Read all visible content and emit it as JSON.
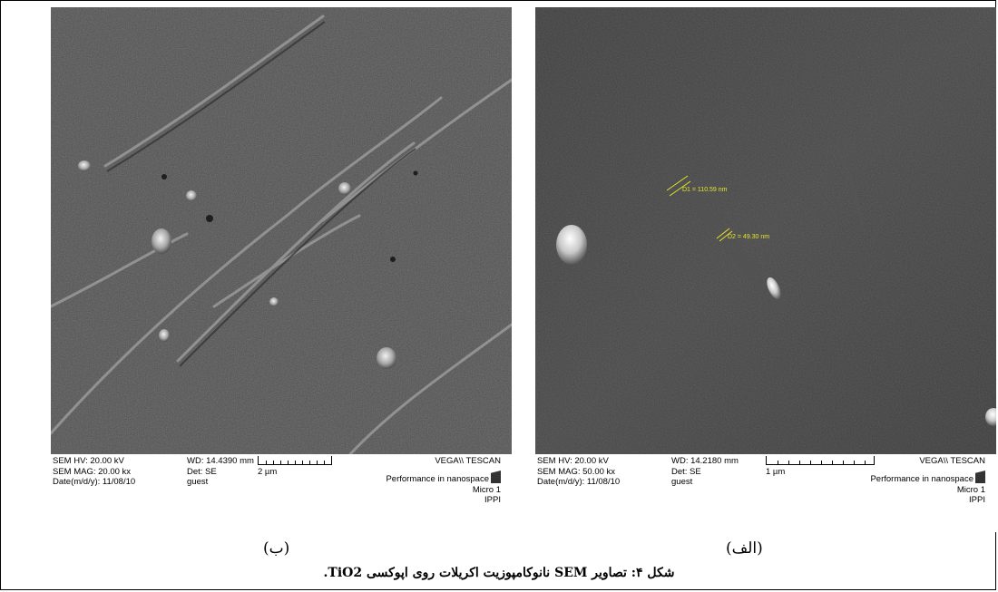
{
  "panel_b": {
    "databar": {
      "sem_hv": "SEM HV: 20.00 kV",
      "sem_mag": "SEM MAG: 20.00 kx",
      "date": "Date(m/d/y): 11/08/10",
      "wd": "WD: 14.4390 mm",
      "det": "Det: SE",
      "user": "guest",
      "scale_bar": "2 µm",
      "brand": "VEGA\\\\ TESCAN",
      "tagline": "Performance in nanospace",
      "micro": "Micro 1",
      "org": "IPPI"
    },
    "label": "(ب)"
  },
  "panel_a": {
    "measurements": [
      "D1 = 110.59 nm",
      "D2 = 49.30 nm"
    ],
    "databar": {
      "sem_hv": "SEM HV: 20.00 kV",
      "sem_mag": "SEM MAG: 50.00 kx",
      "date": "Date(m/d/y): 11/08/10",
      "wd": "WD: 14.2180 mm",
      "det": "Det: SE",
      "user": "guest",
      "scale_bar": "1 µm",
      "brand": "VEGA\\\\ TESCAN",
      "tagline": "Performance in nanospace",
      "micro": "Micro 1",
      "org": "IPPI"
    },
    "label": "(الف)"
  },
  "caption": "شکل ۴: تصاویر SEM نانوکامپوزیت اکریلات روی اپوکسی TiO2."
}
